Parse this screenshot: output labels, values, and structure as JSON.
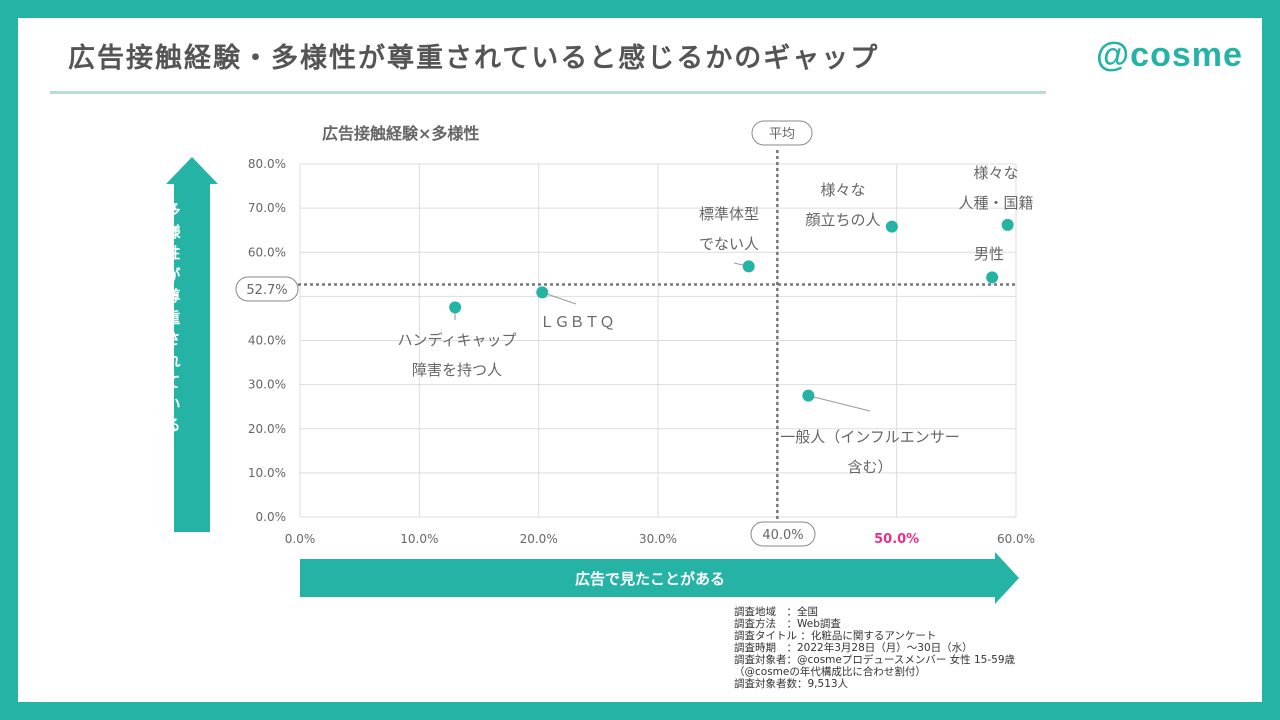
{
  "page": {
    "title": "広告接触経験・多様性が尊重されていると感じるかのギャップ",
    "logo": "@cosme"
  },
  "colors": {
    "teal": "#25b3a5",
    "highlight": "#e8308a",
    "text_gray": "#555555",
    "grid": "#dddddd"
  },
  "chart_data": {
    "type": "scatter",
    "title": "広告接触経験×多様性",
    "xlabel": "広告で見たことがある",
    "ylabel": "多様性が尊重されている",
    "xlim": [
      0,
      60
    ],
    "ylim": [
      0,
      80
    ],
    "x_ticks": [
      "0.0%",
      "10.0%",
      "20.0%",
      "30.0%",
      "40.0%",
      "50.0%",
      "60.0%"
    ],
    "y_ticks": [
      "0.0%",
      "10.0%",
      "20.0%",
      "30.0%",
      "40.0%",
      "50.0%",
      "60.0%",
      "70.0%",
      "80.0%"
    ],
    "highlight_tick": "50.0%",
    "grid": true,
    "reference_lines": {
      "x": 40,
      "y": 52.7,
      "x_label": "40.0%",
      "y_label": "52.7%",
      "avg_label": "平均"
    },
    "points": [
      {
        "x": 13.0,
        "y": 47.5,
        "label_lines": [
          "ハンディキャップ",
          "障害を持つ人"
        ]
      },
      {
        "x": 20.3,
        "y": 50.9,
        "label_lines": [
          "ＬＧＢＴＱ"
        ]
      },
      {
        "x": 37.6,
        "y": 56.8,
        "label_lines": [
          "標準体型",
          "でない人"
        ]
      },
      {
        "x": 42.6,
        "y": 27.5,
        "label_lines": [
          "一般人（インフルエンサー",
          "含む）"
        ]
      },
      {
        "x": 49.6,
        "y": 65.8,
        "label_lines": [
          "様々な",
          "顔立ちの人"
        ]
      },
      {
        "x": 58.0,
        "y": 54.3,
        "label_lines": [
          "男性"
        ]
      },
      {
        "x": 59.3,
        "y": 66.2,
        "label_lines": [
          "様々な",
          "人種・国籍"
        ]
      }
    ]
  },
  "notes": [
    "調査地域　：全国",
    "調査方法　：Web調査",
    "調査タイトル ：化粧品に関するアンケート",
    "調査時期　：2022年3月28日（月）～30日（水）",
    "調査対象者：@cosmeプロデュースメンバー 女性 15-59歳",
    "（@cosmeの年代構成比に合わせ割付）",
    "調査対象者数：9,513人"
  ]
}
